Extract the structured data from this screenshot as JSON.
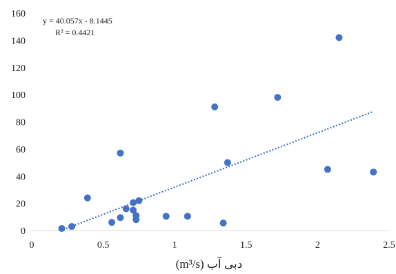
{
  "chart_data": {
    "type": "scatter",
    "title": "",
    "xlabel": "دبی آب (m³/s)",
    "ylabel": "",
    "xlim": [
      0,
      2.5
    ],
    "ylim": [
      0,
      160
    ],
    "x_ticks": [
      "0",
      "0.5",
      "1",
      "1.5",
      "2",
      "2.5"
    ],
    "y_ticks": [
      "0",
      "20",
      "40",
      "60",
      "80",
      "100",
      "120",
      "140",
      "160"
    ],
    "grid": false,
    "legend": "none",
    "colors": {
      "points": "#4472C4",
      "trendline": "#4472C4",
      "axis": "#D9D9D9"
    },
    "trendline": {
      "type": "linear",
      "slope": 40.057,
      "intercept": -8.1445,
      "x_range": [
        0.2,
        2.38
      ],
      "equation": "y = 40.057x - 8.1445",
      "r_squared": "R² = 0.4421"
    },
    "series": [
      {
        "points": [
          {
            "x": 0.21,
            "y": 1.5
          },
          {
            "x": 0.28,
            "y": 3
          },
          {
            "x": 0.39,
            "y": 24
          },
          {
            "x": 0.56,
            "y": 6
          },
          {
            "x": 0.62,
            "y": 9.5
          },
          {
            "x": 0.62,
            "y": 57
          },
          {
            "x": 0.66,
            "y": 16
          },
          {
            "x": 0.71,
            "y": 15
          },
          {
            "x": 0.71,
            "y": 20.5
          },
          {
            "x": 0.73,
            "y": 11
          },
          {
            "x": 0.73,
            "y": 8
          },
          {
            "x": 0.75,
            "y": 22
          },
          {
            "x": 0.94,
            "y": 10.5
          },
          {
            "x": 1.09,
            "y": 10.5
          },
          {
            "x": 1.28,
            "y": 91
          },
          {
            "x": 1.34,
            "y": 5.5
          },
          {
            "x": 1.37,
            "y": 50
          },
          {
            "x": 1.72,
            "y": 98
          },
          {
            "x": 2.07,
            "y": 45
          },
          {
            "x": 2.15,
            "y": 142
          },
          {
            "x": 2.39,
            "y": 43
          }
        ]
      }
    ]
  }
}
